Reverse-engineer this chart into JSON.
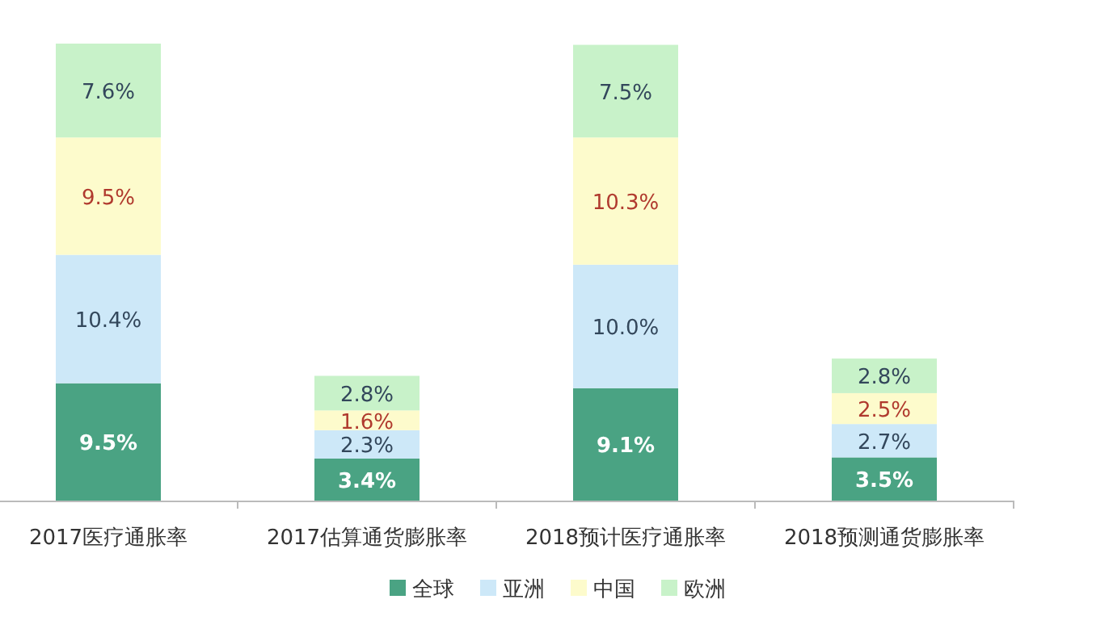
{
  "chart_data": {
    "type": "bar",
    "stacked": true,
    "categories": [
      "2017医疗通胀率",
      "2017估算通货膨胀率",
      "2018预计医疗通胀率",
      "2018预测通货膨胀率"
    ],
    "series": [
      {
        "name": "全球",
        "color": "#4aa383",
        "values": [
          9.5,
          3.4,
          9.1,
          3.5
        ],
        "value_labels": [
          "9.5%",
          "3.4%",
          "9.1%",
          "3.5%"
        ]
      },
      {
        "name": "亚洲",
        "color": "#cde8f8",
        "values": [
          10.4,
          2.3,
          10.0,
          2.7
        ],
        "value_labels": [
          "10.4%",
          "2.3%",
          "10.0%",
          "2.7%"
        ]
      },
      {
        "name": "中国",
        "color": "#fdfbcc",
        "values": [
          9.5,
          1.6,
          10.3,
          2.5
        ],
        "value_labels": [
          "9.5%",
          "1.6%",
          "10.3%",
          "2.5%"
        ]
      },
      {
        "name": "欧洲",
        "color": "#c8f2c9",
        "values": [
          7.6,
          2.8,
          7.5,
          2.8
        ],
        "value_labels": [
          "7.6%",
          "2.8%",
          "7.5%",
          "2.8%"
        ]
      }
    ],
    "legend": "bottom"
  }
}
